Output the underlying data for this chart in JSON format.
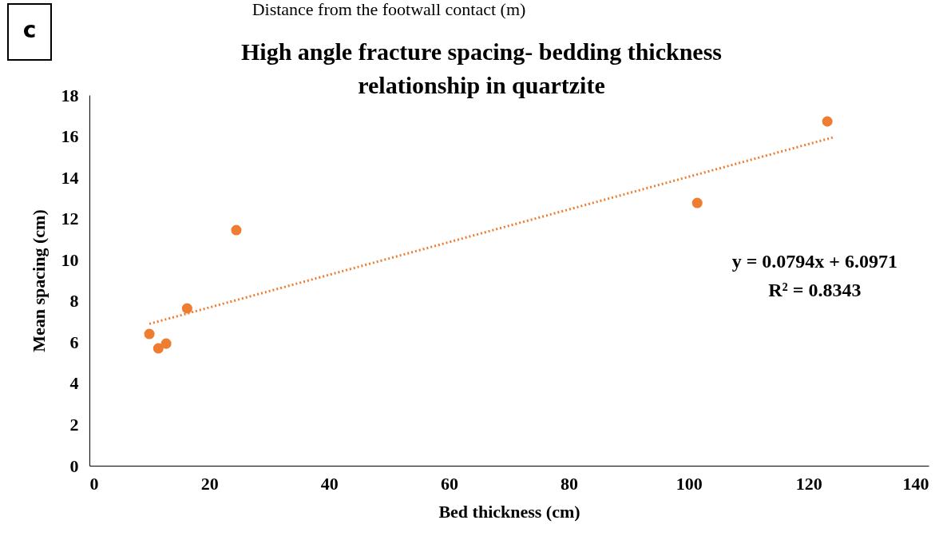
{
  "chart_data": {
    "type": "scatter",
    "title": "High angle fracture spacing- bedding thickness relationship in quartzite",
    "xlabel": "Bed thickness (cm)",
    "ylabel": "Mean spacing (cm)",
    "annotations": [
      "Distance from the footwall contact (m)",
      "c",
      "y = 0.0794x + 6.0971",
      "R² = 0.8343"
    ],
    "series": [
      {
        "color": "#ed7d31",
        "x": [
          10.0,
          11.5,
          12.8,
          16.3,
          24.5,
          101.4,
          123.1
        ],
        "values": [
          6.4,
          5.7,
          5.93,
          7.64,
          11.44,
          12.76,
          16.72
        ],
        "marker": "circle"
      },
      {
        "type": "line",
        "color": "#ed7d31",
        "x": [
          10,
          124
        ],
        "values": [
          6.89,
          15.94
        ],
        "line_style": "dotted"
      }
    ],
    "xlim": [
      0,
      140
    ],
    "xticks": [
      0,
      20,
      40,
      60,
      80,
      100,
      120,
      140
    ],
    "ylim": [
      0,
      18
    ],
    "yticks": [
      0,
      2,
      4,
      6,
      8,
      10,
      12,
      14,
      16,
      18
    ],
    "grid": false
  }
}
